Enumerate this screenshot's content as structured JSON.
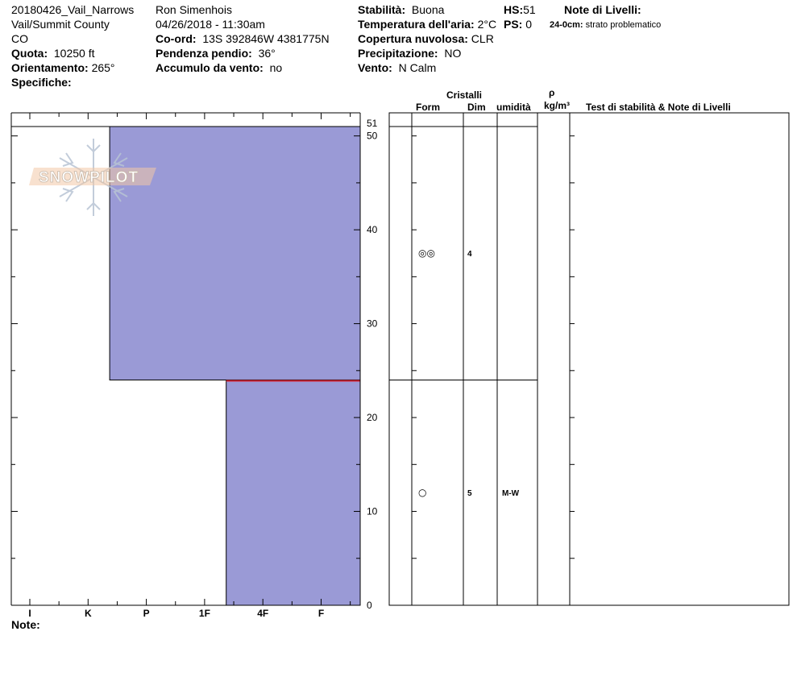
{
  "header": {
    "site_name": "20180426_Vail_Narrows",
    "location": "Vail/Summit County",
    "state": "CO",
    "elevation_label": "Quota:",
    "elevation_value": "10250 ft",
    "aspect_label": "Orientamento:",
    "aspect_value": "265°",
    "specifics_label": "Specifiche:",
    "observer": "Ron Simenhois",
    "datetime": "04/26/2018 - 11:30am",
    "coord_label": "Co-ord:",
    "coord_value": "13S 392846W 4381775N",
    "slope_label": "Pendenza pendio:",
    "slope_value": "36°",
    "wind_loading_label": "Accumulo da vento:",
    "wind_loading_value": "no",
    "stability_label": "Stabilità:",
    "stability_value": "Buona",
    "air_temp_label": "Temperatura dell'aria:",
    "air_temp_value": "2°C",
    "cloud_label": "Copertura nuvolosa:",
    "cloud_value": "CLR",
    "precip_label": "Precipitazione:",
    "precip_value": "NO",
    "wind_label": "Vento:",
    "wind_value": "N Calm",
    "hs_label": "HS:",
    "hs_value": "51",
    "ps_label": "PS:",
    "ps_value": "0",
    "layer_notes_label": "Note di Livelli:",
    "layer_note_depth": "24-0cm:",
    "layer_note_text": "strato problematico"
  },
  "columns": {
    "crystals": "Cristalli",
    "form": "Form",
    "dim": "Dim",
    "moisture": "umidità",
    "rho": "ρ",
    "density_unit": "kg/m³",
    "tests": "Test di stabilità & Note di Livelli"
  },
  "notes_label": "Note:",
  "logo_text": "SNOWPILOT",
  "chart_data": {
    "type": "bar",
    "title": "",
    "xlabel": "",
    "ylabel": "",
    "x_categories": [
      "I",
      "K",
      "P",
      "1F",
      "4F",
      "F"
    ],
    "ylim": [
      0,
      51
    ],
    "y_ticks": [
      0,
      10,
      20,
      30,
      40,
      50,
      51
    ],
    "fill_color": "#9a9ad6",
    "weak_layer_color": "#cc2233",
    "layers": [
      {
        "top": 51,
        "bottom": 24,
        "hardness_from_right": 4.3,
        "form": "◎◎",
        "size": "4",
        "moisture": ""
      },
      {
        "top": 24,
        "bottom": 0,
        "hardness_from_right": 2.3,
        "form": "○",
        "size": "5",
        "moisture": "M-W"
      }
    ],
    "weak_layer_depth": 24
  }
}
